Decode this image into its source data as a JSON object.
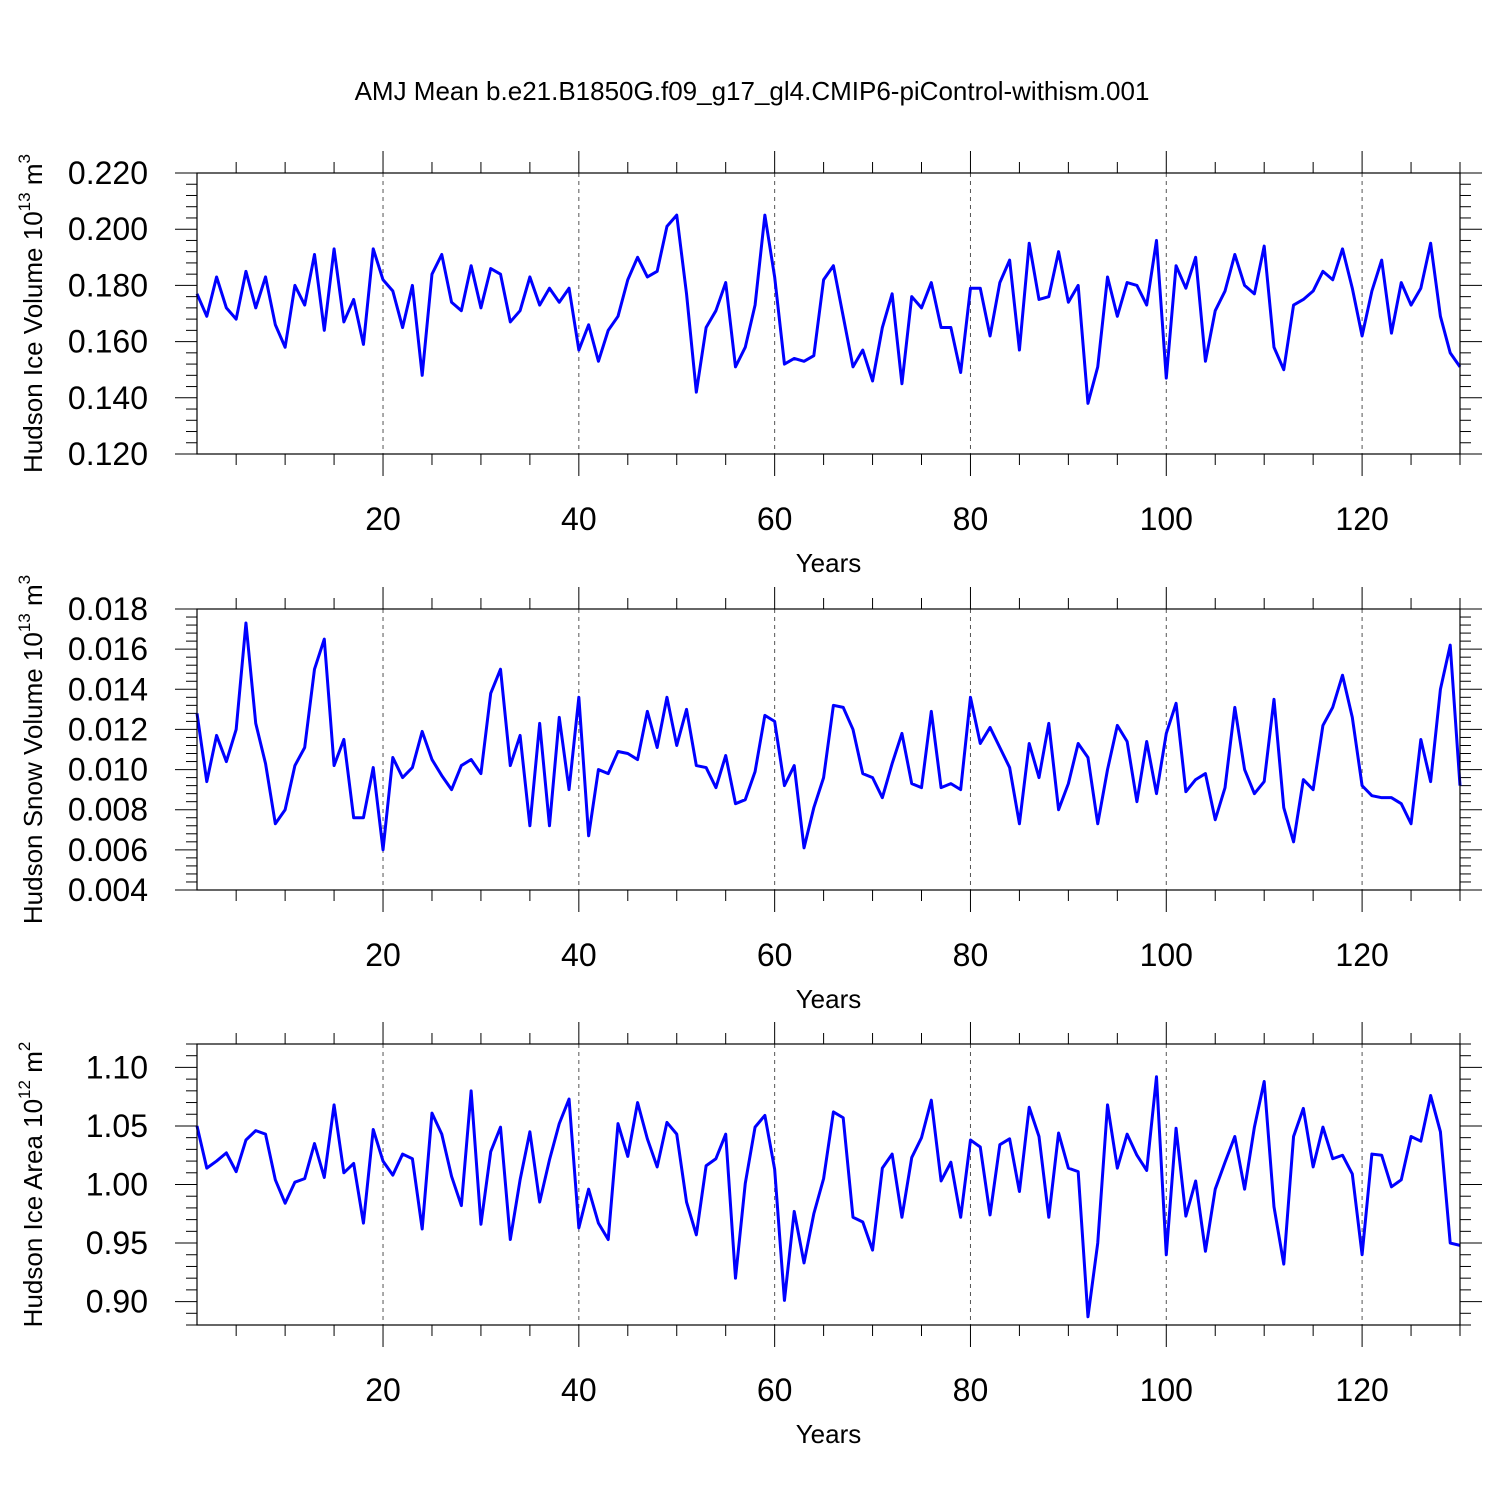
{
  "title": "AMJ Mean b.e21.B1850G.f09_g17_gl4.CMIP6-piControl-withism.001",
  "colors": {
    "line": "#0000ff",
    "axis": "#000000",
    "grid": "#555555"
  },
  "chart_data": [
    {
      "type": "line",
      "xlabel": "Years",
      "ylabel": {
        "main": "Hudson Ice Volume 10",
        "exp": "13",
        "unit": " m",
        "unit_exp": "3"
      },
      "xlim": [
        1,
        130
      ],
      "ylim": [
        0.12,
        0.22
      ],
      "xticks": [
        20,
        40,
        60,
        80,
        100,
        120
      ],
      "xtick_labels": [
        "20",
        "40",
        "60",
        "80",
        "100",
        "120"
      ],
      "yticks": [
        0.12,
        0.14,
        0.16,
        0.18,
        0.2,
        0.22
      ],
      "ytick_labels": [
        "0.120",
        "0.140",
        "0.160",
        "0.180",
        "0.200",
        "0.220"
      ],
      "ygrid": false,
      "xgrid_dashed": true,
      "values": [
        0.177,
        0.169,
        0.183,
        0.172,
        0.168,
        0.185,
        0.172,
        0.183,
        0.166,
        0.158,
        0.18,
        0.173,
        0.191,
        0.164,
        0.193,
        0.167,
        0.175,
        0.159,
        0.193,
        0.182,
        0.178,
        0.165,
        0.18,
        0.148,
        0.184,
        0.191,
        0.174,
        0.171,
        0.187,
        0.172,
        0.186,
        0.184,
        0.167,
        0.171,
        0.183,
        0.173,
        0.179,
        0.174,
        0.179,
        0.157,
        0.166,
        0.153,
        0.164,
        0.169,
        0.182,
        0.19,
        0.183,
        0.185,
        0.201,
        0.205,
        0.177,
        0.142,
        0.165,
        0.171,
        0.181,
        0.151,
        0.158,
        0.173,
        0.205,
        0.183,
        0.152,
        0.154,
        0.153,
        0.155,
        0.182,
        0.187,
        0.169,
        0.151,
        0.157,
        0.146,
        0.165,
        0.177,
        0.145,
        0.176,
        0.172,
        0.181,
        0.165,
        0.165,
        0.149,
        0.179,
        0.179,
        0.162,
        0.181,
        0.189,
        0.157,
        0.195,
        0.175,
        0.176,
        0.192,
        0.174,
        0.18,
        0.138,
        0.151,
        0.183,
        0.169,
        0.181,
        0.18,
        0.173,
        0.196,
        0.147,
        0.187,
        0.179,
        0.19,
        0.153,
        0.171,
        0.178,
        0.191,
        0.18,
        0.177,
        0.194,
        0.158,
        0.15,
        0.173,
        0.175,
        0.178,
        0.185,
        0.182,
        0.193,
        0.179,
        0.162,
        0.178,
        0.189,
        0.163,
        0.181,
        0.173,
        0.179,
        0.195,
        0.169,
        0.156,
        0.151
      ]
    },
    {
      "type": "line",
      "xlabel": "Years",
      "ylabel": {
        "main": "Hudson Snow Volume 10",
        "exp": "13",
        "unit": " m",
        "unit_exp": "3"
      },
      "xlim": [
        1,
        130
      ],
      "ylim": [
        0.004,
        0.018
      ],
      "xticks": [
        20,
        40,
        60,
        80,
        100,
        120
      ],
      "xtick_labels": [
        "20",
        "40",
        "60",
        "80",
        "100",
        "120"
      ],
      "yticks": [
        0.004,
        0.006,
        0.008,
        0.01,
        0.012,
        0.014,
        0.016,
        0.018
      ],
      "ytick_labels": [
        "0.004",
        "0.006",
        "0.008",
        "0.010",
        "0.012",
        "0.014",
        "0.016",
        "0.018"
      ],
      "ygrid": false,
      "xgrid_dashed": true,
      "values": [
        0.0128,
        0.0094,
        0.0117,
        0.0104,
        0.012,
        0.0173,
        0.0123,
        0.0103,
        0.0073,
        0.008,
        0.0102,
        0.0111,
        0.015,
        0.0165,
        0.0102,
        0.0115,
        0.0076,
        0.0076,
        0.0101,
        0.006,
        0.0106,
        0.0096,
        0.0101,
        0.0119,
        0.0105,
        0.0097,
        0.009,
        0.0102,
        0.0105,
        0.0098,
        0.0138,
        0.015,
        0.0102,
        0.0117,
        0.0072,
        0.0123,
        0.0072,
        0.0126,
        0.009,
        0.0136,
        0.0067,
        0.01,
        0.0098,
        0.0109,
        0.0108,
        0.0105,
        0.0129,
        0.0111,
        0.0136,
        0.0112,
        0.013,
        0.0102,
        0.0101,
        0.0091,
        0.0107,
        0.0083,
        0.0085,
        0.0099,
        0.0127,
        0.0124,
        0.0092,
        0.0102,
        0.0061,
        0.0081,
        0.0096,
        0.0132,
        0.0131,
        0.012,
        0.0098,
        0.0096,
        0.0086,
        0.0103,
        0.0118,
        0.0093,
        0.0091,
        0.0129,
        0.0091,
        0.0093,
        0.009,
        0.0136,
        0.0113,
        0.0121,
        0.0111,
        0.0101,
        0.0073,
        0.0113,
        0.0096,
        0.0123,
        0.008,
        0.0093,
        0.0113,
        0.0106,
        0.0073,
        0.01,
        0.0122,
        0.0114,
        0.0084,
        0.0114,
        0.0088,
        0.0118,
        0.0133,
        0.0089,
        0.0095,
        0.0098,
        0.0075,
        0.0091,
        0.0131,
        0.01,
        0.0088,
        0.0094,
        0.0135,
        0.0081,
        0.0064,
        0.0095,
        0.009,
        0.0122,
        0.0131,
        0.0147,
        0.0126,
        0.0092,
        0.0087,
        0.0086,
        0.0086,
        0.0083,
        0.0073,
        0.0115,
        0.0094,
        0.014,
        0.0162,
        0.0092
      ]
    },
    {
      "type": "line",
      "xlabel": "Years",
      "ylabel": {
        "main": "Hudson Ice Area 10",
        "exp": "12",
        "unit": " m",
        "unit_exp": "2"
      },
      "xlim": [
        1,
        130
      ],
      "ylim": [
        0.88,
        1.12
      ],
      "xticks": [
        20,
        40,
        60,
        80,
        100,
        120
      ],
      "xtick_labels": [
        "20",
        "40",
        "60",
        "80",
        "100",
        "120"
      ],
      "yticks": [
        0.9,
        0.95,
        1.0,
        1.05,
        1.1
      ],
      "ytick_labels": [
        "0.90",
        "0.95",
        "1.00",
        "1.05",
        "1.10"
      ],
      "ygrid": false,
      "xgrid_dashed": true,
      "values": [
        1.05,
        1.014,
        1.02,
        1.027,
        1.011,
        1.038,
        1.046,
        1.043,
        1.004,
        0.984,
        1.002,
        1.005,
        1.035,
        1.006,
        1.068,
        1.01,
        1.018,
        0.967,
        1.047,
        1.02,
        1.008,
        1.026,
        1.022,
        0.962,
        1.061,
        1.043,
        1.007,
        0.982,
        1.08,
        0.966,
        1.028,
        1.049,
        0.953,
        1.004,
        1.045,
        0.985,
        1.021,
        1.052,
        1.073,
        0.963,
        0.996,
        0.967,
        0.953,
        1.052,
        1.024,
        1.07,
        1.039,
        1.015,
        1.053,
        1.043,
        0.985,
        0.957,
        1.016,
        1.022,
        1.043,
        0.92,
        1.001,
        1.049,
        1.059,
        1.013,
        0.901,
        0.977,
        0.933,
        0.975,
        1.005,
        1.062,
        1.057,
        0.972,
        0.968,
        0.944,
        1.014,
        1.026,
        0.972,
        1.023,
        1.04,
        1.072,
        1.003,
        1.019,
        0.972,
        1.038,
        1.032,
        0.974,
        1.034,
        1.039,
        0.994,
        1.066,
        1.041,
        0.972,
        1.044,
        1.014,
        1.011,
        0.887,
        0.95,
        1.068,
        1.014,
        1.043,
        1.025,
        1.012,
        1.092,
        0.94,
        1.048,
        0.973,
        1.003,
        0.943,
        0.996,
        1.019,
        1.041,
        0.996,
        1.049,
        1.088,
        0.981,
        0.932,
        1.041,
        1.065,
        1.015,
        1.049,
        1.022,
        1.025,
        1.009,
        0.94,
        1.026,
        1.025,
        0.998,
        1.004,
        1.041,
        1.037,
        1.076,
        1.045,
        0.95,
        0.948
      ]
    }
  ]
}
